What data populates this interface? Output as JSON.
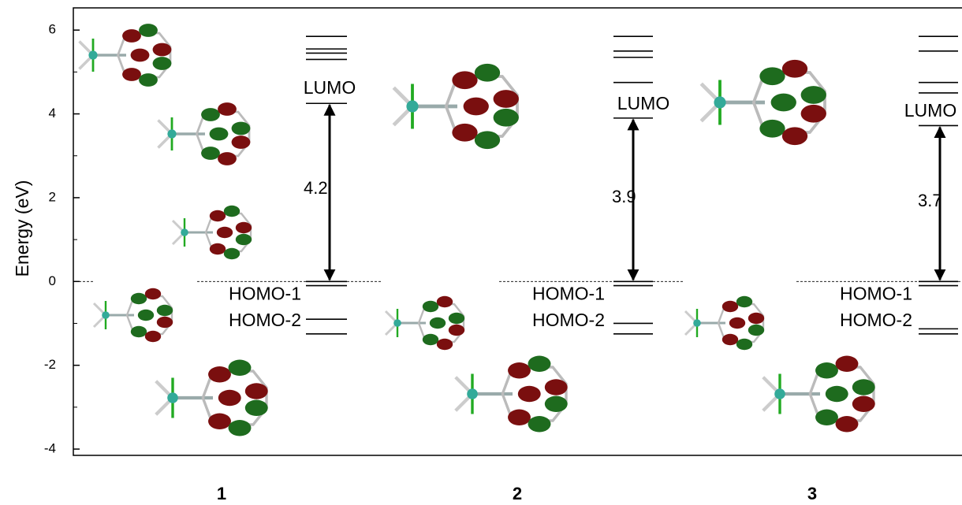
{
  "chart_data": {
    "type": "energy-levels",
    "ylabel": "Energy (eV)",
    "ylim": [
      -4.15,
      6.53
    ],
    "yticks": [
      -4,
      -2,
      0,
      2,
      4,
      6
    ],
    "compounds": [
      {
        "name": "1",
        "levels": [
          5.85,
          5.55,
          5.45,
          5.3,
          4.25,
          0,
          -0.1,
          -0.9,
          -1.25
        ],
        "gap": 4.2,
        "lumo_label": "LUMO",
        "homo1_label": "HOMO-1",
        "homo2_label": "HOMO-2"
      },
      {
        "name": "2",
        "levels": [
          5.85,
          5.5,
          5.35,
          4.75,
          3.9,
          0,
          -0.1,
          -1.0,
          -1.25
        ],
        "gap": 3.9,
        "lumo_label": "LUMO",
        "homo1_label": "HOMO-1",
        "homo2_label": "HOMO-2"
      },
      {
        "name": "3",
        "levels": [
          5.85,
          5.5,
          4.75,
          4.5,
          3.72,
          0,
          -0.1,
          -1.13,
          -1.25
        ],
        "gap": 3.7,
        "lumo_label": "LUMO",
        "homo1_label": "HOMO-1",
        "homo2_label": "HOMO-2"
      }
    ]
  }
}
